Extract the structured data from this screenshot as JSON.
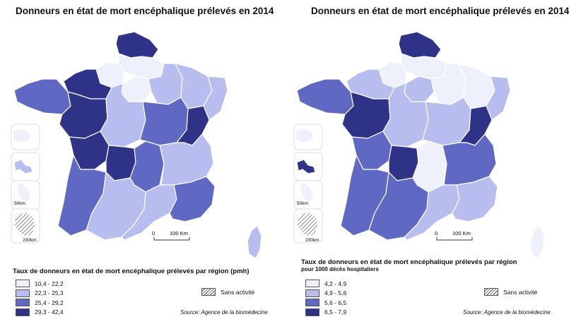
{
  "colors": {
    "c1": "#eef0fb",
    "c2": "#b8bdef",
    "c3": "#5f68c2",
    "c4": "#2e3387",
    "stroke": "#ffffff"
  },
  "left": {
    "title": "Donneurs en état de mort encéphalique prélevés en 2014",
    "legend_title": "Taux de donneurs en état de mort encéphalique prélevés par région (pmh)",
    "legend": [
      {
        "label": "10,4 - 22,2",
        "class": "c1"
      },
      {
        "label": "22,3 - 25,3",
        "class": "c2"
      },
      {
        "label": "25,4 - 29,2",
        "class": "c3"
      },
      {
        "label": "29,3 - 42,4",
        "class": "c4"
      }
    ],
    "regions": {
      "nord": "c4",
      "picardie": "c1",
      "hnormandie": "c1",
      "idf": "c1",
      "champagne": "c2",
      "lorraine": "c2",
      "alsace": "c2",
      "bretagne": "c3",
      "bnormandie": "c4",
      "paysloire": "c4",
      "centre": "c2",
      "bourgogne": "c3",
      "franchecomte": "c4",
      "poitou": "c4",
      "limousin": "c4",
      "auvergne": "c3",
      "rhonealpes": "c2",
      "aquitaine": "c3",
      "midipyrenees": "c2",
      "languedoc": "c2",
      "paca": "c3",
      "corse": "c2",
      "guadeloupe": "c2",
      "martinique": "c1",
      "reunion": "c1",
      "guyane": "hatch"
    }
  },
  "right": {
    "title": "Donneurs en état de mort encéphalique prélevés en 2014",
    "legend_title": "Taux de donneurs en état de mort encéphalique prélevés par région",
    "legend_sub": "pour 1000 décès hospitaliers",
    "legend": [
      {
        "label": "4,2 - 4,9",
        "class": "c1"
      },
      {
        "label": "4,9 - 5,6",
        "class": "c2"
      },
      {
        "label": "5,6 - 6,5",
        "class": "c3"
      },
      {
        "label": "6,5 - 7,9",
        "class": "c4"
      }
    ],
    "regions": {
      "nord": "c4",
      "picardie": "c1",
      "hnormandie": "c1",
      "idf": "c2",
      "champagne": "c1",
      "lorraine": "c1",
      "alsace": "c2",
      "bretagne": "c3",
      "bnormandie": "c2",
      "paysloire": "c4",
      "centre": "c2",
      "bourgogne": "c2",
      "franchecomte": "c4",
      "poitou": "c3",
      "limousin": "c4",
      "auvergne": "c1",
      "rhonealpes": "c3",
      "aquitaine": "c3",
      "midipyrenees": "c3",
      "languedoc": "c2",
      "paca": "c2",
      "corse": "c1",
      "guadeloupe": "c4",
      "martinique": "c1",
      "reunion": "c1",
      "guyane": "hatch"
    }
  },
  "common": {
    "sans_activite": "Sans activité",
    "source": "Source: Agence de la biomédecine",
    "scale_label": "100 Km",
    "scale_zero": "0",
    "scale_50": "50km",
    "scale_200": "200km"
  }
}
